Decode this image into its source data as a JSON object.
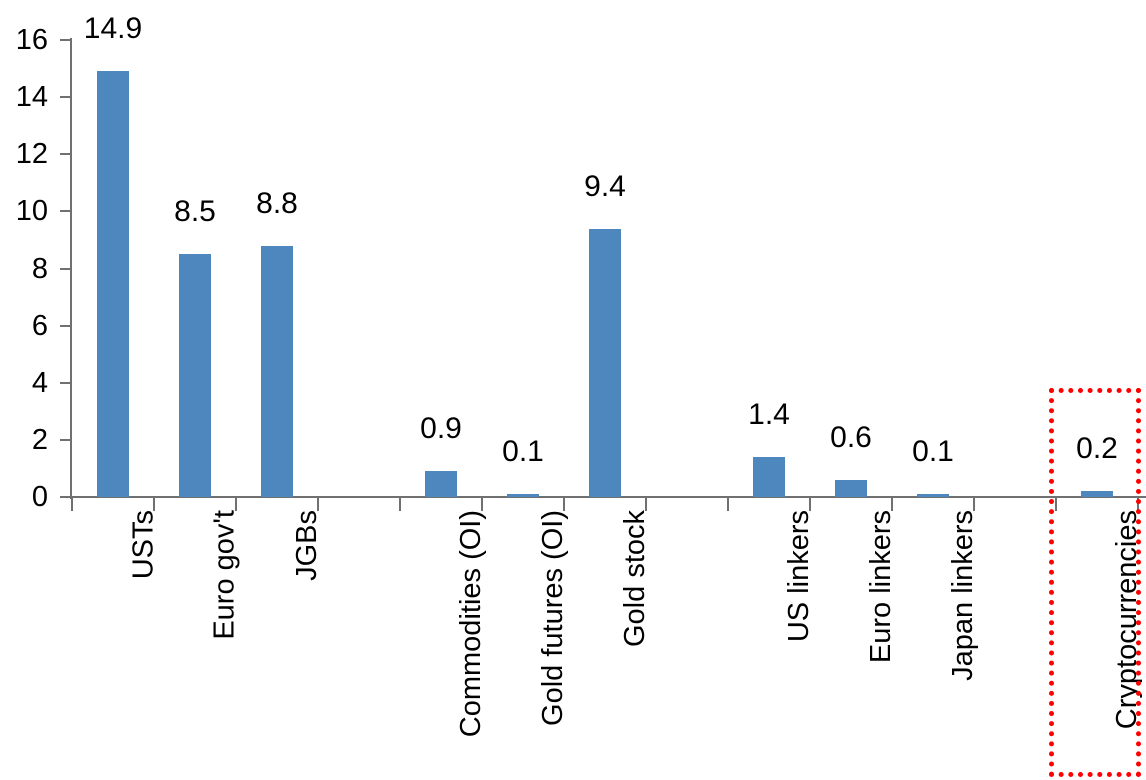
{
  "chart_data": {
    "type": "bar",
    "title": "",
    "categories": [
      "USTs",
      "Euro gov't",
      "JGBs",
      "Commodities (OI)",
      "Gold futures (OI)",
      "Gold stock",
      "US linkers",
      "Euro linkers",
      "Japan linkers",
      "Cryptocurrencies"
    ],
    "values": [
      14.9,
      8.5,
      8.8,
      0.9,
      0.1,
      9.4,
      1.4,
      0.6,
      0.1,
      0.2
    ],
    "data_labels": [
      "14.9",
      "8.5",
      "8.8",
      "0.9",
      "0.1",
      "9.4",
      "1.4",
      "0.6",
      "0.1",
      "0.2"
    ],
    "group_sizes": [
      3,
      3,
      3,
      1
    ],
    "y_axis": {
      "min": 0,
      "max": 16,
      "tick_step": 2,
      "ticks": [
        0,
        2,
        4,
        6,
        8,
        10,
        12,
        14,
        16
      ]
    },
    "grid": false,
    "legend": false,
    "xlabel": "",
    "ylabel": "",
    "bar_color": "#4E86BE",
    "axis_color": "#707070",
    "label_color": "#000000",
    "highlight": {
      "target_category": "Cryptocurrencies",
      "style": "dotted-outline",
      "color": "#FF0000"
    }
  }
}
